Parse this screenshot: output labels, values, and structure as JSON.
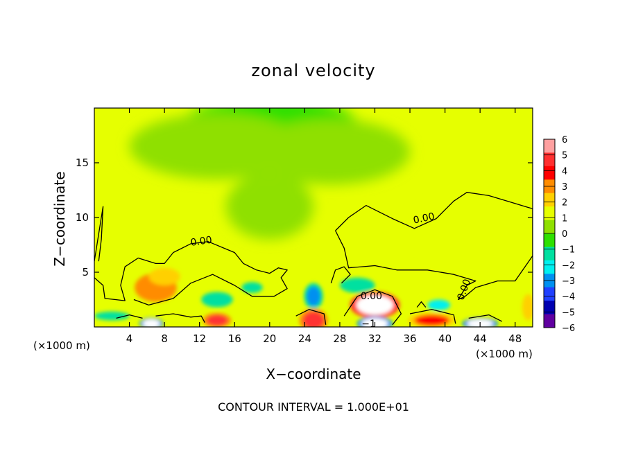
{
  "chart_data": {
    "type": "heatmap",
    "title": "zonal velocity",
    "xlabel": "X−coordinate",
    "ylabel": "Z−coordinate",
    "x_unit_left": "(×1000 m)",
    "x_unit_right": "(×1000 m)",
    "xlim": [
      0,
      50
    ],
    "ylim": [
      0,
      20
    ],
    "x_ticks": [
      4,
      8,
      12,
      16,
      20,
      24,
      28,
      32,
      36,
      40,
      44,
      48
    ],
    "y_ticks": [
      5,
      10,
      15
    ],
    "colorbar": {
      "ticks": [
        6,
        5,
        4,
        3,
        2,
        1,
        0,
        -1,
        -2,
        -3,
        -4,
        -5,
        -6
      ],
      "tick_labels": [
        "6",
        "5",
        "4",
        "3",
        "2",
        "1",
        "0",
        "−1",
        "−2",
        "−3",
        "−4",
        "−5",
        "−6"
      ],
      "colors": [
        "#ffa0a0",
        "#ff3030",
        "#ff0000",
        "#ff8c00",
        "#ffd000",
        "#e6ff00",
        "#8fe000",
        "#2ee000",
        "#00e0a0",
        "#00f0f0",
        "#0090f0",
        "#2040ff",
        "#0000b0",
        "#6000a0"
      ]
    },
    "contour_labels": [
      "0.00",
      "0.00",
      "0.00",
      "0.00",
      "−1"
    ],
    "blobs": [
      {
        "x": 20,
        "y": 18.5,
        "rx": 10,
        "ry": 2.5,
        "v": -1.9
      },
      {
        "x": 14,
        "y": 16.5,
        "rx": 10,
        "ry": 3,
        "v": -0.6
      },
      {
        "x": 27,
        "y": 16,
        "rx": 9,
        "ry": 3,
        "v": -0.7
      },
      {
        "x": 20,
        "y": 11,
        "rx": 5,
        "ry": 3,
        "v": -0.6
      },
      {
        "x": 43,
        "y": 9,
        "rx": 6,
        "ry": 3,
        "v": 0.6
      },
      {
        "x": 31,
        "y": 8.6,
        "rx": 5,
        "ry": 2,
        "v": 0.7
      },
      {
        "x": 7,
        "y": 3.6,
        "rx": 2.4,
        "ry": 1.3,
        "v": 2.8
      },
      {
        "x": 8,
        "y": 4.6,
        "rx": 1.8,
        "ry": 0.8,
        "v": 1.6
      },
      {
        "x": 25,
        "y": 2.8,
        "rx": 0.8,
        "ry": 0.9,
        "v": -4.5
      },
      {
        "x": 14,
        "y": 2.5,
        "rx": 1.8,
        "ry": 0.7,
        "v": -2.6
      },
      {
        "x": 39.3,
        "y": 2.0,
        "rx": 1.3,
        "ry": 0.5,
        "v": -3.0
      },
      {
        "x": 32,
        "y": 2.0,
        "rx": 2.1,
        "ry": 0.9,
        "v": 6.5
      },
      {
        "x": 14,
        "y": 0.6,
        "rx": 1.2,
        "ry": 0.5,
        "v": 5.0
      },
      {
        "x": 25,
        "y": 0.6,
        "rx": 1.2,
        "ry": 0.8,
        "v": 4.5
      },
      {
        "x": 6.5,
        "y": 0.3,
        "rx": 1.0,
        "ry": 0.4,
        "v": -6.5
      },
      {
        "x": 32,
        "y": 0.3,
        "rx": 1.5,
        "ry": 0.5,
        "v": -6.5
      },
      {
        "x": 44,
        "y": 0.3,
        "rx": 1.5,
        "ry": 0.4,
        "v": -6.5
      },
      {
        "x": 38.5,
        "y": 0.6,
        "rx": 2,
        "ry": 0.5,
        "v": 3.5
      },
      {
        "x": 2,
        "y": 1.0,
        "rx": 2,
        "ry": 0.4,
        "v": -2.5
      },
      {
        "x": 30,
        "y": 3.8,
        "rx": 2,
        "ry": 0.7,
        "v": -2.2
      },
      {
        "x": 18,
        "y": 3.6,
        "rx": 1.2,
        "ry": 0.5,
        "v": -2.0
      },
      {
        "x": 49.5,
        "y": 1.8,
        "rx": 0.7,
        "ry": 1.2,
        "v": 2.0
      }
    ]
  },
  "footer": "CONTOUR INTERVAL = 1.000E+01"
}
